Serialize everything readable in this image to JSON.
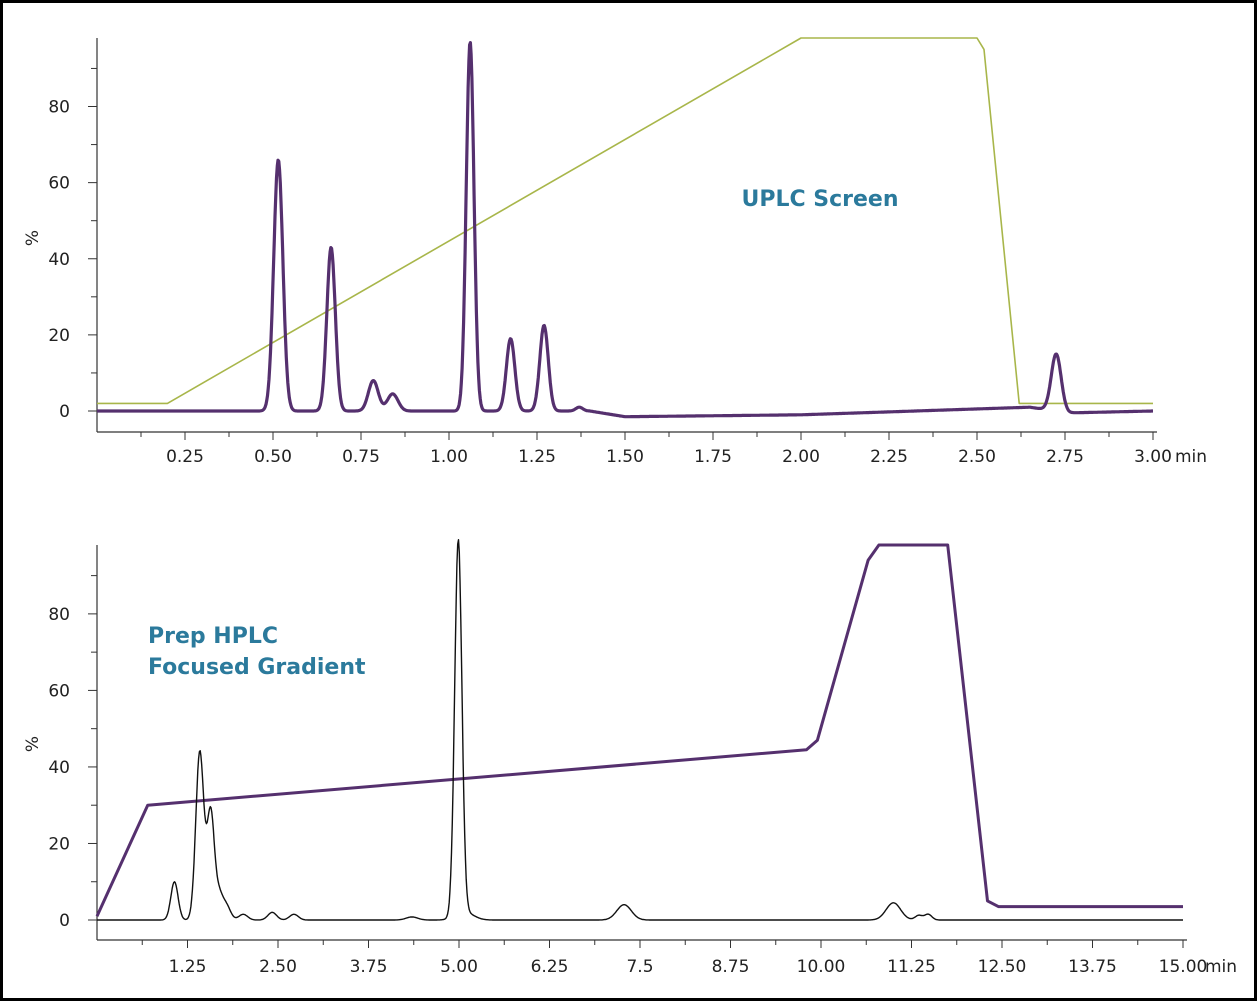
{
  "chart_data": [
    {
      "type": "line",
      "title": "UPLC Screen",
      "ylabel": "%",
      "xunit": "min",
      "xlim": [
        0,
        3.0
      ],
      "ylim": [
        -5,
        98
      ],
      "xticks": [
        0.25,
        0.5,
        0.75,
        1.0,
        1.25,
        1.5,
        1.75,
        2.0,
        2.25,
        2.5,
        2.75,
        3.0
      ],
      "xtick_labels": [
        "0.25",
        "0.50",
        "0.75",
        "1.00",
        "1.25",
        "1.50",
        "1.75",
        "2.00",
        "2.25",
        "2.50",
        "2.75",
        "3.00"
      ],
      "yticks": [
        0,
        20,
        40,
        60,
        80
      ],
      "ytick_labels": [
        "0",
        "20",
        "40",
        "60",
        "80"
      ],
      "series": [
        {
          "color": "#a8b64a",
          "kind": "polyline",
          "x": [
            0,
            0.2,
            2.0,
            2.5,
            2.52,
            2.62,
            3.0
          ],
          "y": [
            2,
            2,
            98,
            98,
            95,
            2,
            2
          ]
        },
        {
          "color": "#55306e",
          "kind": "peaks",
          "baseline": [
            [
              0,
              0
            ],
            [
              0.45,
              0
            ],
            [
              1.4,
              0
            ],
            [
              1.5,
              -1.5
            ],
            [
              2.0,
              -1
            ],
            [
              2.65,
              1
            ],
            [
              2.76,
              -0.5
            ],
            [
              3.0,
              0
            ]
          ],
          "peaks": [
            {
              "x": 0.515,
              "h": 66,
              "w": 0.013
            },
            {
              "x": 0.665,
              "h": 43,
              "w": 0.012
            },
            {
              "x": 0.785,
              "h": 8,
              "w": 0.014
            },
            {
              "x": 0.84,
              "h": 4.5,
              "w": 0.015
            },
            {
              "x": 1.06,
              "h": 97,
              "w": 0.011
            },
            {
              "x": 1.175,
              "h": 19,
              "w": 0.012
            },
            {
              "x": 1.27,
              "h": 22.5,
              "w": 0.012
            },
            {
              "x": 1.37,
              "h": 1,
              "w": 0.01
            },
            {
              "x": 2.725,
              "h": 15,
              "w": 0.014
            }
          ]
        }
      ]
    },
    {
      "type": "line",
      "title": "Prep HPLC\nFocused Gradient",
      "title_lines": [
        "Prep HPLC",
        "Focused Gradient"
      ],
      "ylabel": "%",
      "xunit": "min",
      "xlim": [
        0,
        15.0
      ],
      "ylim": [
        -5,
        98
      ],
      "xticks": [
        1.25,
        2.5,
        3.75,
        5.0,
        6.25,
        7.5,
        8.75,
        10.0,
        11.25,
        12.5,
        13.75,
        15.0
      ],
      "xtick_labels": [
        "1.25",
        "2.50",
        "3.75",
        "5.00",
        "6.25",
        "7.5",
        "8.75",
        "10.00",
        "11.25",
        "12.50",
        "13.75",
        "15.00"
      ],
      "yticks": [
        0,
        20,
        40,
        60,
        80
      ],
      "ytick_labels": [
        "0",
        "20",
        "40",
        "60",
        "80"
      ],
      "series": [
        {
          "color": "#55306e",
          "kind": "polyline",
          "x": [
            0,
            0.7,
            9.8,
            9.95,
            10.65,
            10.8,
            11.75,
            12.3,
            12.45,
            15.0
          ],
          "y": [
            1,
            30,
            44.5,
            47,
            94,
            98,
            98,
            5,
            3.5,
            3.5
          ]
        },
        {
          "color": "#111111",
          "kind": "peaks",
          "baseline": [
            [
              0,
              0
            ],
            [
              15.0,
              0
            ]
          ],
          "peaks": [
            {
              "x": 1.07,
              "h": 10,
              "w": 0.05
            },
            {
              "x": 1.42,
              "h": 44,
              "w": 0.055
            },
            {
              "x": 1.57,
              "h": 28,
              "w": 0.05
            },
            {
              "x": 1.68,
              "h": 6,
              "w": 0.05
            },
            {
              "x": 1.78,
              "h": 4,
              "w": 0.06
            },
            {
              "x": 2.02,
              "h": 1.5,
              "w": 0.06
            },
            {
              "x": 2.42,
              "h": 2,
              "w": 0.06
            },
            {
              "x": 2.72,
              "h": 1.5,
              "w": 0.06
            },
            {
              "x": 4.35,
              "h": 0.8,
              "w": 0.08
            },
            {
              "x": 4.99,
              "h": 98,
              "w": 0.05
            },
            {
              "x": 5.08,
              "h": 2,
              "w": 0.12
            },
            {
              "x": 7.28,
              "h": 4,
              "w": 0.1
            },
            {
              "x": 11.0,
              "h": 4.5,
              "w": 0.1
            },
            {
              "x": 11.35,
              "h": 1.2,
              "w": 0.05
            },
            {
              "x": 11.48,
              "h": 1.5,
              "w": 0.05
            }
          ]
        }
      ]
    }
  ]
}
